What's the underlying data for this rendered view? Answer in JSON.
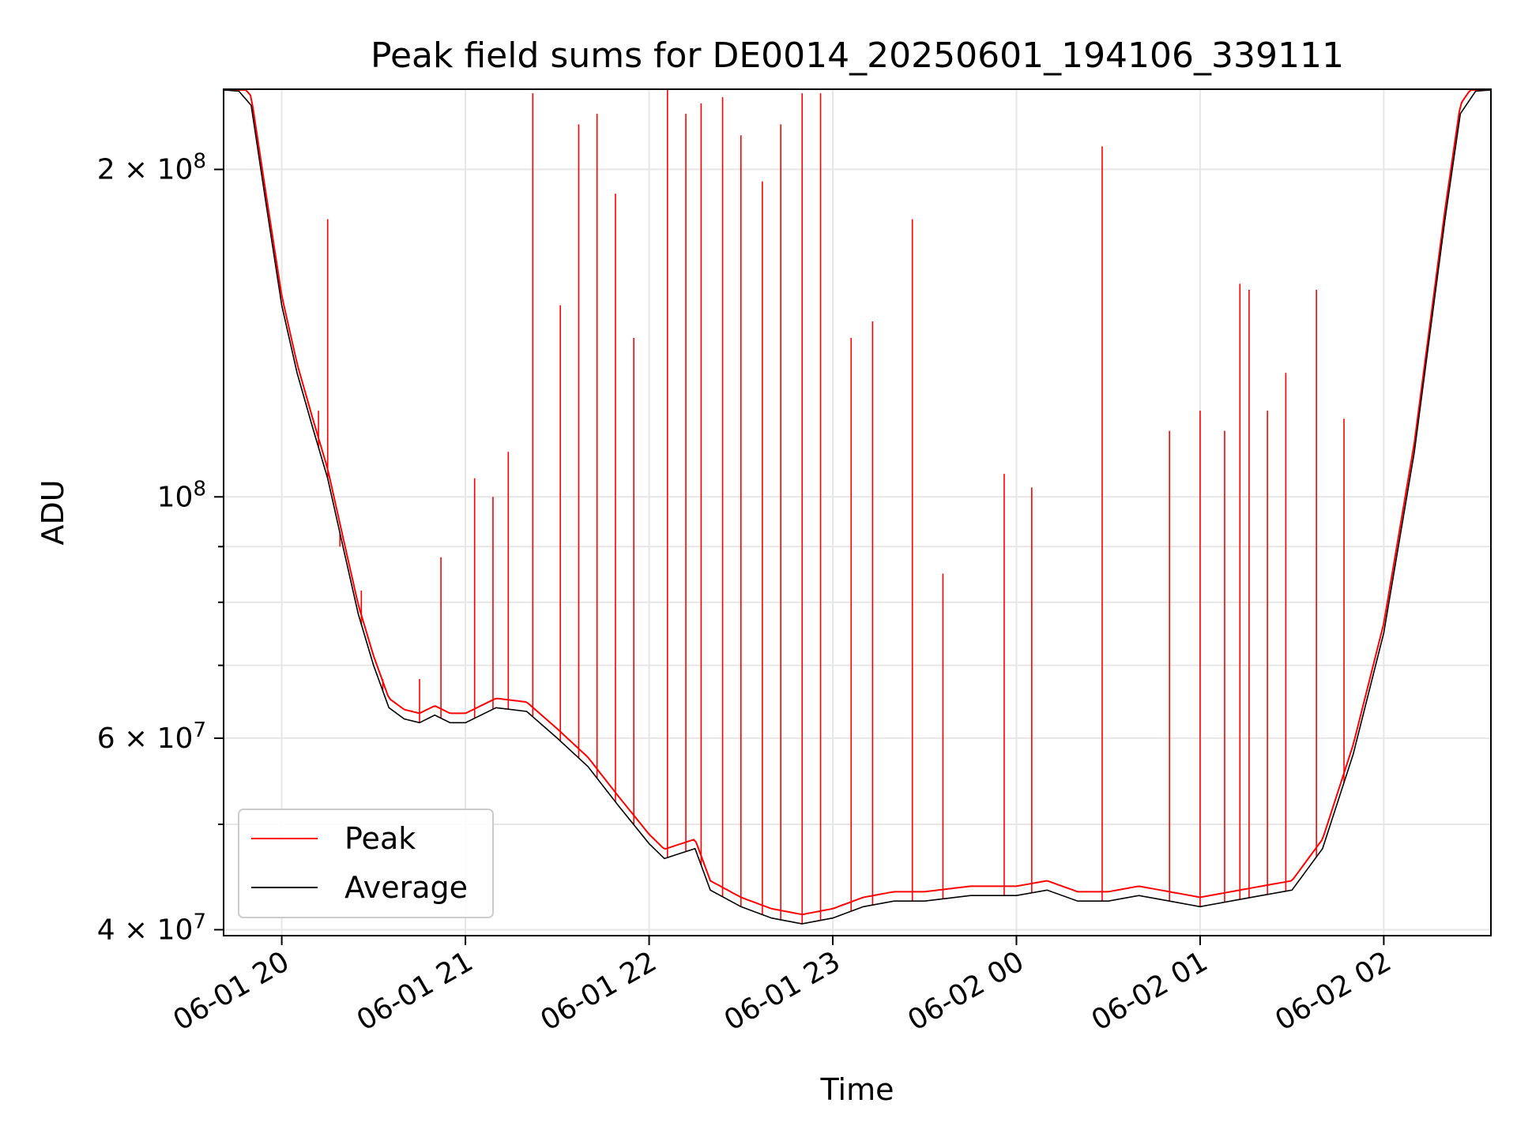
{
  "chart_data": {
    "type": "line",
    "title": "Peak field sums for DE0014_20250601_194106_339111",
    "xlabel": "Time",
    "ylabel": "ADU",
    "yscale": "log",
    "ylim": [
      39500000,
      237000000
    ],
    "xlim": [
      "2025-06-01 19:41",
      "2025-06-02 02:35"
    ],
    "x_ticks": [
      {
        "label": "06-01 20",
        "value": "2025-06-01 20:00"
      },
      {
        "label": "06-01 21",
        "value": "2025-06-01 21:00"
      },
      {
        "label": "06-01 22",
        "value": "2025-06-01 22:00"
      },
      {
        "label": "06-01 23",
        "value": "2025-06-01 23:00"
      },
      {
        "label": "06-02 00",
        "value": "2025-06-02 00:00"
      },
      {
        "label": "06-02 01",
        "value": "2025-06-02 01:00"
      },
      {
        "label": "06-02 02",
        "value": "2025-06-02 02:00"
      }
    ],
    "y_ticks": [
      {
        "base": "4 × 10",
        "exp": "7",
        "value": 40000000
      },
      {
        "base": "6 × 10",
        "exp": "7",
        "value": 60000000
      },
      {
        "base": "10",
        "exp": "8",
        "value": 100000000
      },
      {
        "base": "2 × 10",
        "exp": "8",
        "value": 200000000
      }
    ],
    "y_minor_ticks": [
      50000000,
      70000000,
      80000000,
      90000000
    ],
    "grid": true,
    "legend_position": "lower-left",
    "series": [
      {
        "name": "Average",
        "color": "#000000",
        "x": [
          "2025-06-01 19:41",
          "2025-06-01 19:46",
          "2025-06-01 19:50",
          "2025-06-01 19:55",
          "2025-06-01 20:00",
          "2025-06-01 20:05",
          "2025-06-01 20:10",
          "2025-06-01 20:15",
          "2025-06-01 20:20",
          "2025-06-01 20:25",
          "2025-06-01 20:30",
          "2025-06-01 20:35",
          "2025-06-01 20:40",
          "2025-06-01 20:45",
          "2025-06-01 20:50",
          "2025-06-01 20:55",
          "2025-06-01 21:00",
          "2025-06-01 21:10",
          "2025-06-01 21:20",
          "2025-06-01 21:30",
          "2025-06-01 21:40",
          "2025-06-01 21:50",
          "2025-06-01 22:00",
          "2025-06-01 22:05",
          "2025-06-01 22:10",
          "2025-06-01 22:15",
          "2025-06-01 22:20",
          "2025-06-01 22:30",
          "2025-06-01 22:40",
          "2025-06-01 22:50",
          "2025-06-01 23:00",
          "2025-06-01 23:10",
          "2025-06-01 23:20",
          "2025-06-01 23:30",
          "2025-06-01 23:45",
          "2025-06-02 00:00",
          "2025-06-02 00:10",
          "2025-06-02 00:20",
          "2025-06-02 00:30",
          "2025-06-02 00:40",
          "2025-06-02 00:50",
          "2025-06-02 01:00",
          "2025-06-02 01:10",
          "2025-06-02 01:20",
          "2025-06-02 01:30",
          "2025-06-02 01:40",
          "2025-06-02 01:50",
          "2025-06-02 02:00",
          "2025-06-02 02:10",
          "2025-06-02 02:20",
          "2025-06-02 02:25",
          "2025-06-02 02:30",
          "2025-06-02 02:35"
        ],
        "y": [
          237000000,
          236000000,
          229000000,
          185000000,
          150000000,
          130000000,
          116000000,
          104000000,
          90000000,
          78000000,
          70000000,
          64000000,
          62500000,
          62000000,
          63000000,
          62000000,
          62000000,
          64000000,
          63500000,
          60000000,
          56500000,
          52000000,
          48000000,
          46500000,
          47000000,
          47500000,
          43500000,
          42000000,
          41000000,
          40500000,
          41000000,
          42000000,
          42500000,
          42500000,
          43000000,
          43000000,
          43500000,
          42500000,
          42500000,
          43000000,
          42500000,
          42000000,
          42500000,
          43000000,
          43500000,
          47500000,
          58000000,
          75000000,
          110000000,
          180000000,
          225000000,
          236000000,
          237000000
        ]
      },
      {
        "name": "Peak",
        "color": "#ff0000",
        "spikes": [
          [
            "2025-06-01 20:08",
            122000000
          ],
          [
            "2025-06-01 20:12",
            120000000
          ],
          [
            "2025-06-01 20:15",
            180000000
          ],
          [
            "2025-06-01 20:19",
            90000000
          ],
          [
            "2025-06-01 20:26",
            82000000
          ],
          [
            "2025-06-01 20:33",
            68000000
          ],
          [
            "2025-06-01 20:45",
            68000000
          ],
          [
            "2025-06-01 20:52",
            88000000
          ],
          [
            "2025-06-01 21:03",
            104000000
          ],
          [
            "2025-06-01 21:09",
            100000000
          ],
          [
            "2025-06-01 21:14",
            110000000
          ],
          [
            "2025-06-01 21:22",
            235000000
          ],
          [
            "2025-06-01 21:31",
            150000000
          ],
          [
            "2025-06-01 21:37",
            220000000
          ],
          [
            "2025-06-01 21:43",
            225000000
          ],
          [
            "2025-06-01 21:49",
            190000000
          ],
          [
            "2025-06-01 21:55",
            140000000
          ],
          [
            "2025-06-01 22:06",
            237000000
          ],
          [
            "2025-06-01 22:12",
            225000000
          ],
          [
            "2025-06-01 22:17",
            230000000
          ],
          [
            "2025-06-01 22:24",
            233000000
          ],
          [
            "2025-06-01 22:30",
            215000000
          ],
          [
            "2025-06-01 22:37",
            195000000
          ],
          [
            "2025-06-01 22:43",
            220000000
          ],
          [
            "2025-06-01 22:50",
            235000000
          ],
          [
            "2025-06-01 22:56",
            235000000
          ],
          [
            "2025-06-01 23:06",
            140000000
          ],
          [
            "2025-06-01 23:13",
            145000000
          ],
          [
            "2025-06-01 23:26",
            180000000
          ],
          [
            "2025-06-01 23:36",
            85000000
          ],
          [
            "2025-06-01 23:56",
            105000000
          ],
          [
            "2025-06-02 00:05",
            102000000
          ],
          [
            "2025-06-02 00:28",
            210000000
          ],
          [
            "2025-06-02 00:50",
            115000000
          ],
          [
            "2025-06-02 01:00",
            120000000
          ],
          [
            "2025-06-02 01:08",
            115000000
          ],
          [
            "2025-06-02 01:13",
            157000000
          ],
          [
            "2025-06-02 01:16",
            155000000
          ],
          [
            "2025-06-02 01:22",
            120000000
          ],
          [
            "2025-06-02 01:28",
            130000000
          ],
          [
            "2025-06-02 01:38",
            155000000
          ],
          [
            "2025-06-02 01:47",
            118000000
          ]
        ]
      }
    ]
  }
}
